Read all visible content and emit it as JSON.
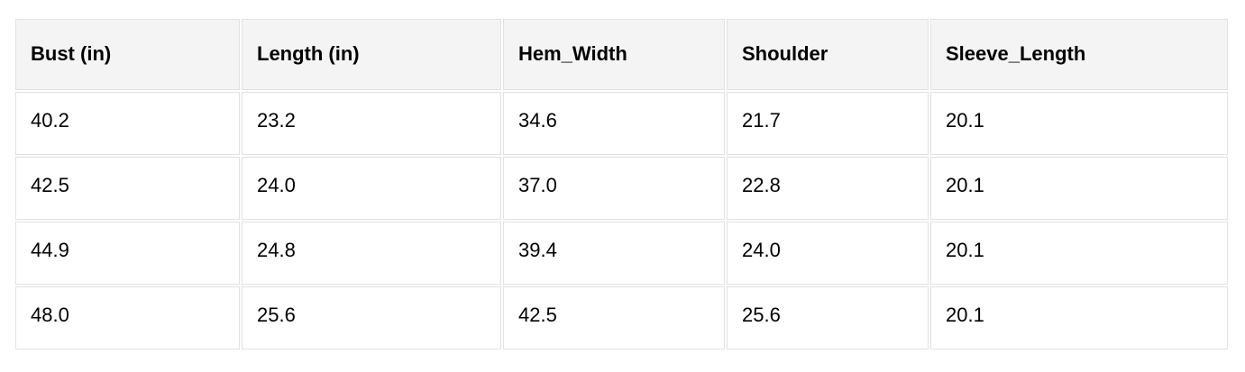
{
  "chart_data": {
    "type": "table",
    "title": "",
    "columns": [
      "Bust (in)",
      "Length (in)",
      "Hem_Width",
      "Shoulder",
      "Sleeve_Length"
    ],
    "rows": [
      [
        "40.2",
        "23.2",
        "34.6",
        "21.7",
        "20.1"
      ],
      [
        "42.5",
        "24.0",
        "37.0",
        "22.8",
        "20.1"
      ],
      [
        "44.9",
        "24.8",
        "39.4",
        "24.0",
        "20.1"
      ],
      [
        "48.0",
        "25.6",
        "42.5",
        "25.6",
        "20.1"
      ]
    ]
  },
  "colors": {
    "header_bg": "#f4f4f4",
    "cell_bg": "#ffffff",
    "border": "#e2e2e2",
    "text": "#000000",
    "page_bg": "#ffffff"
  }
}
